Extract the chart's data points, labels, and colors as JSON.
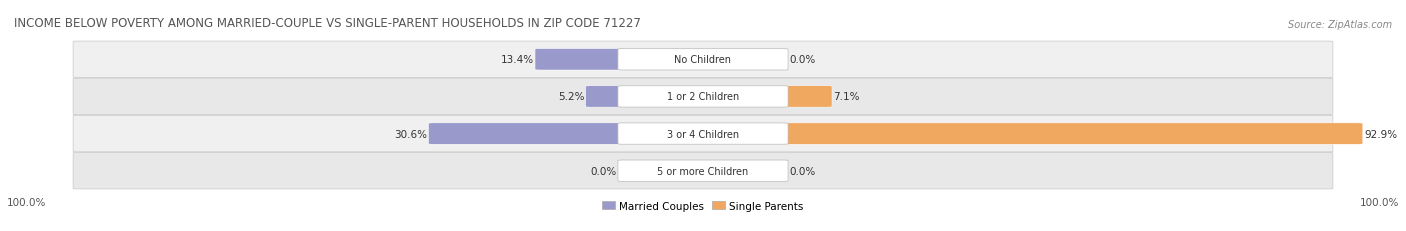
{
  "title": "INCOME BELOW POVERTY AMONG MARRIED-COUPLE VS SINGLE-PARENT HOUSEHOLDS IN ZIP CODE 71227",
  "source": "Source: ZipAtlas.com",
  "categories": [
    "No Children",
    "1 or 2 Children",
    "3 or 4 Children",
    "5 or more Children"
  ],
  "married_values": [
    13.4,
    5.2,
    30.6,
    0.0
  ],
  "single_values": [
    0.0,
    7.1,
    92.9,
    0.0
  ],
  "married_color": "#9999CC",
  "single_color": "#F0A860",
  "max_val": 100.0,
  "title_fontsize": 8.5,
  "source_fontsize": 7.0,
  "label_fontsize": 7.5,
  "cat_fontsize": 7.0,
  "legend_fontsize": 7.5,
  "figsize": [
    14.06,
    2.32
  ],
  "dpi": 100
}
